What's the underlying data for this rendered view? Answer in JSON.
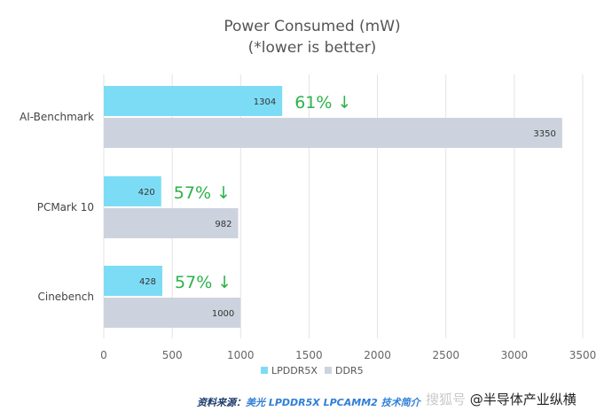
{
  "chart_data": {
    "type": "bar",
    "orientation": "horizontal",
    "title": "Power Consumed (mW)",
    "subtitle": "(*lower is better)",
    "categories": [
      "AI-Benchmark",
      "PCMark 10",
      "Cinebench"
    ],
    "series": [
      {
        "name": "LPDDR5X",
        "color": "#7ddcf5",
        "values": [
          1304,
          420,
          428
        ]
      },
      {
        "name": "DDR5",
        "color": "#cdd3de",
        "values": [
          3350,
          982,
          1000
        ]
      }
    ],
    "annotations": [
      "61% ↓",
      "57% ↓",
      "57% ↓"
    ],
    "annotation_color": "#2bb34a",
    "xlim": [
      0,
      3500
    ],
    "xticks": [
      0,
      500,
      1000,
      1500,
      2000,
      2500,
      3000,
      3500
    ],
    "grid": true,
    "legend_position": "bottom-center"
  },
  "source": {
    "prefix": "资料来源：",
    "title": "美光 LPDDR5X LPCAMM2 技术简介"
  },
  "watermark": {
    "faint": "搜狐号",
    "text": "@半导体产业纵横"
  }
}
